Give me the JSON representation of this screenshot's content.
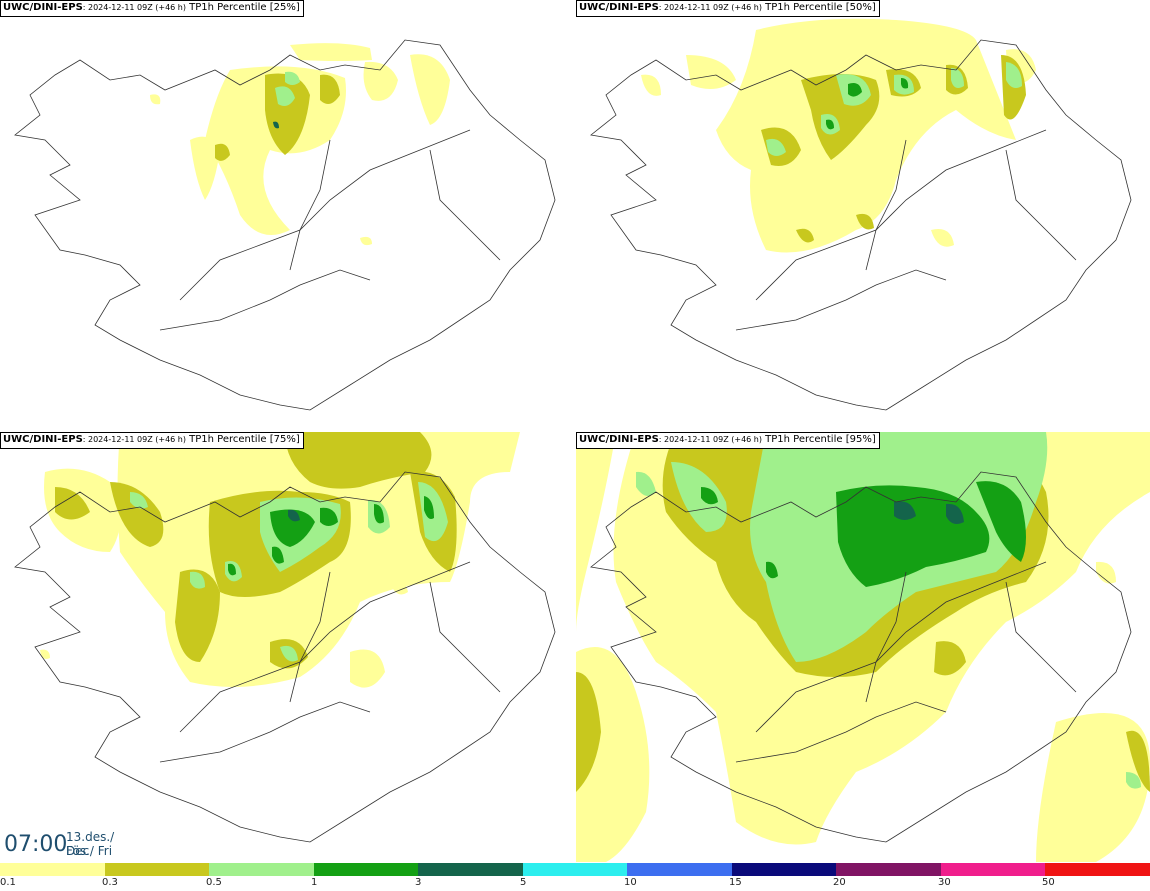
{
  "panels": [
    {
      "source": "UWC/DINI-EPS",
      "run": ": 2024-12-11 09Z (+46 h)",
      "field": " TP1h Percentile [25%]"
    },
    {
      "source": "UWC/DINI-EPS",
      "run": ": 2024-12-11 09Z (+46 h)",
      "field": " TP1h Percentile [50%]"
    },
    {
      "source": "UWC/DINI-EPS",
      "run": ": 2024-12-11 09Z (+46 h)",
      "field": " TP1h Percentile [75%]"
    },
    {
      "source": "UWC/DINI-EPS",
      "run": ": 2024-12-11 09Z (+46 h)",
      "field": " TP1h Percentile [95%]"
    }
  ],
  "valid_time": {
    "clock": "07:00",
    "date_line": "13.des./ Dec",
    "day_line": "Fös./ Fri"
  },
  "colorbar": {
    "colors": [
      "#ffff99",
      "#c8c81e",
      "#a0f08c",
      "#14a014",
      "#14644b",
      "#2ceeee",
      "#3c6ef0",
      "#0a0a7a",
      "#801464",
      "#f01e8c",
      "#f01414"
    ],
    "tick_labels": [
      "0.1",
      "0.3",
      "0.5",
      "1",
      "3",
      "5",
      "10",
      "15",
      "20",
      "30",
      "50"
    ]
  }
}
